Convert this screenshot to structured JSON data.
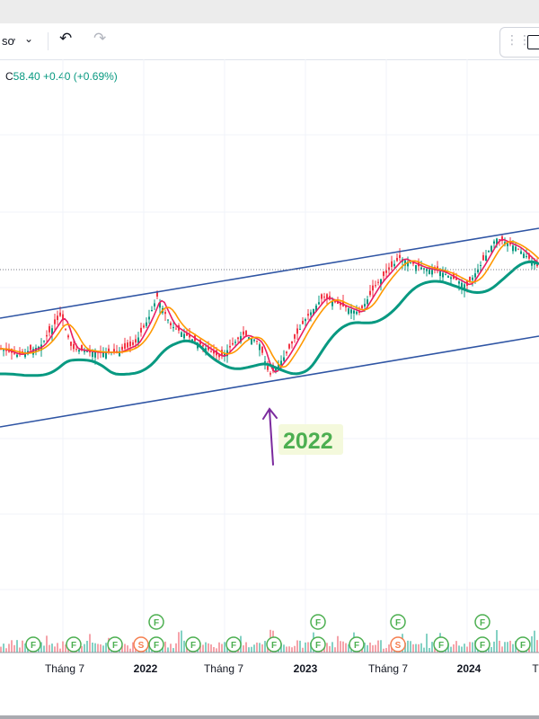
{
  "toolbar": {
    "interval_label": "sơ",
    "chevron_icon": "chevron-down-icon",
    "undo_icon": "undo-icon",
    "redo_icon": "redo-icon",
    "drag_icon": "grip-icon",
    "fullscreen_icon": "square-icon"
  },
  "legend": {
    "close_label": "C",
    "close_value": "58.40",
    "change_value": "+0.40",
    "change_percent": "(+0.69%)"
  },
  "annotation": {
    "text": "2022"
  },
  "chart_data": {
    "type": "candlestick",
    "x_ticks": [
      "Tháng 7",
      "2022",
      "Tháng 7",
      "2023",
      "Tháng 7",
      "2024",
      "T"
    ],
    "current_price": 58.4,
    "change": 0.4,
    "change_percent": 0.69,
    "moving_averages": [
      {
        "color": "#e91e63"
      },
      {
        "color": "#ff9800"
      },
      {
        "color": "#089981"
      }
    ],
    "channel_color": "#2f55a4",
    "annotation_color": "#7b2a9e",
    "annotation_text_color": "#4caf50",
    "event_markers": [
      {
        "label": "F",
        "count": 14
      },
      {
        "label": "S",
        "count": 2
      }
    ],
    "grid": true,
    "up_color": "#089981",
    "down_color": "#f23645"
  }
}
